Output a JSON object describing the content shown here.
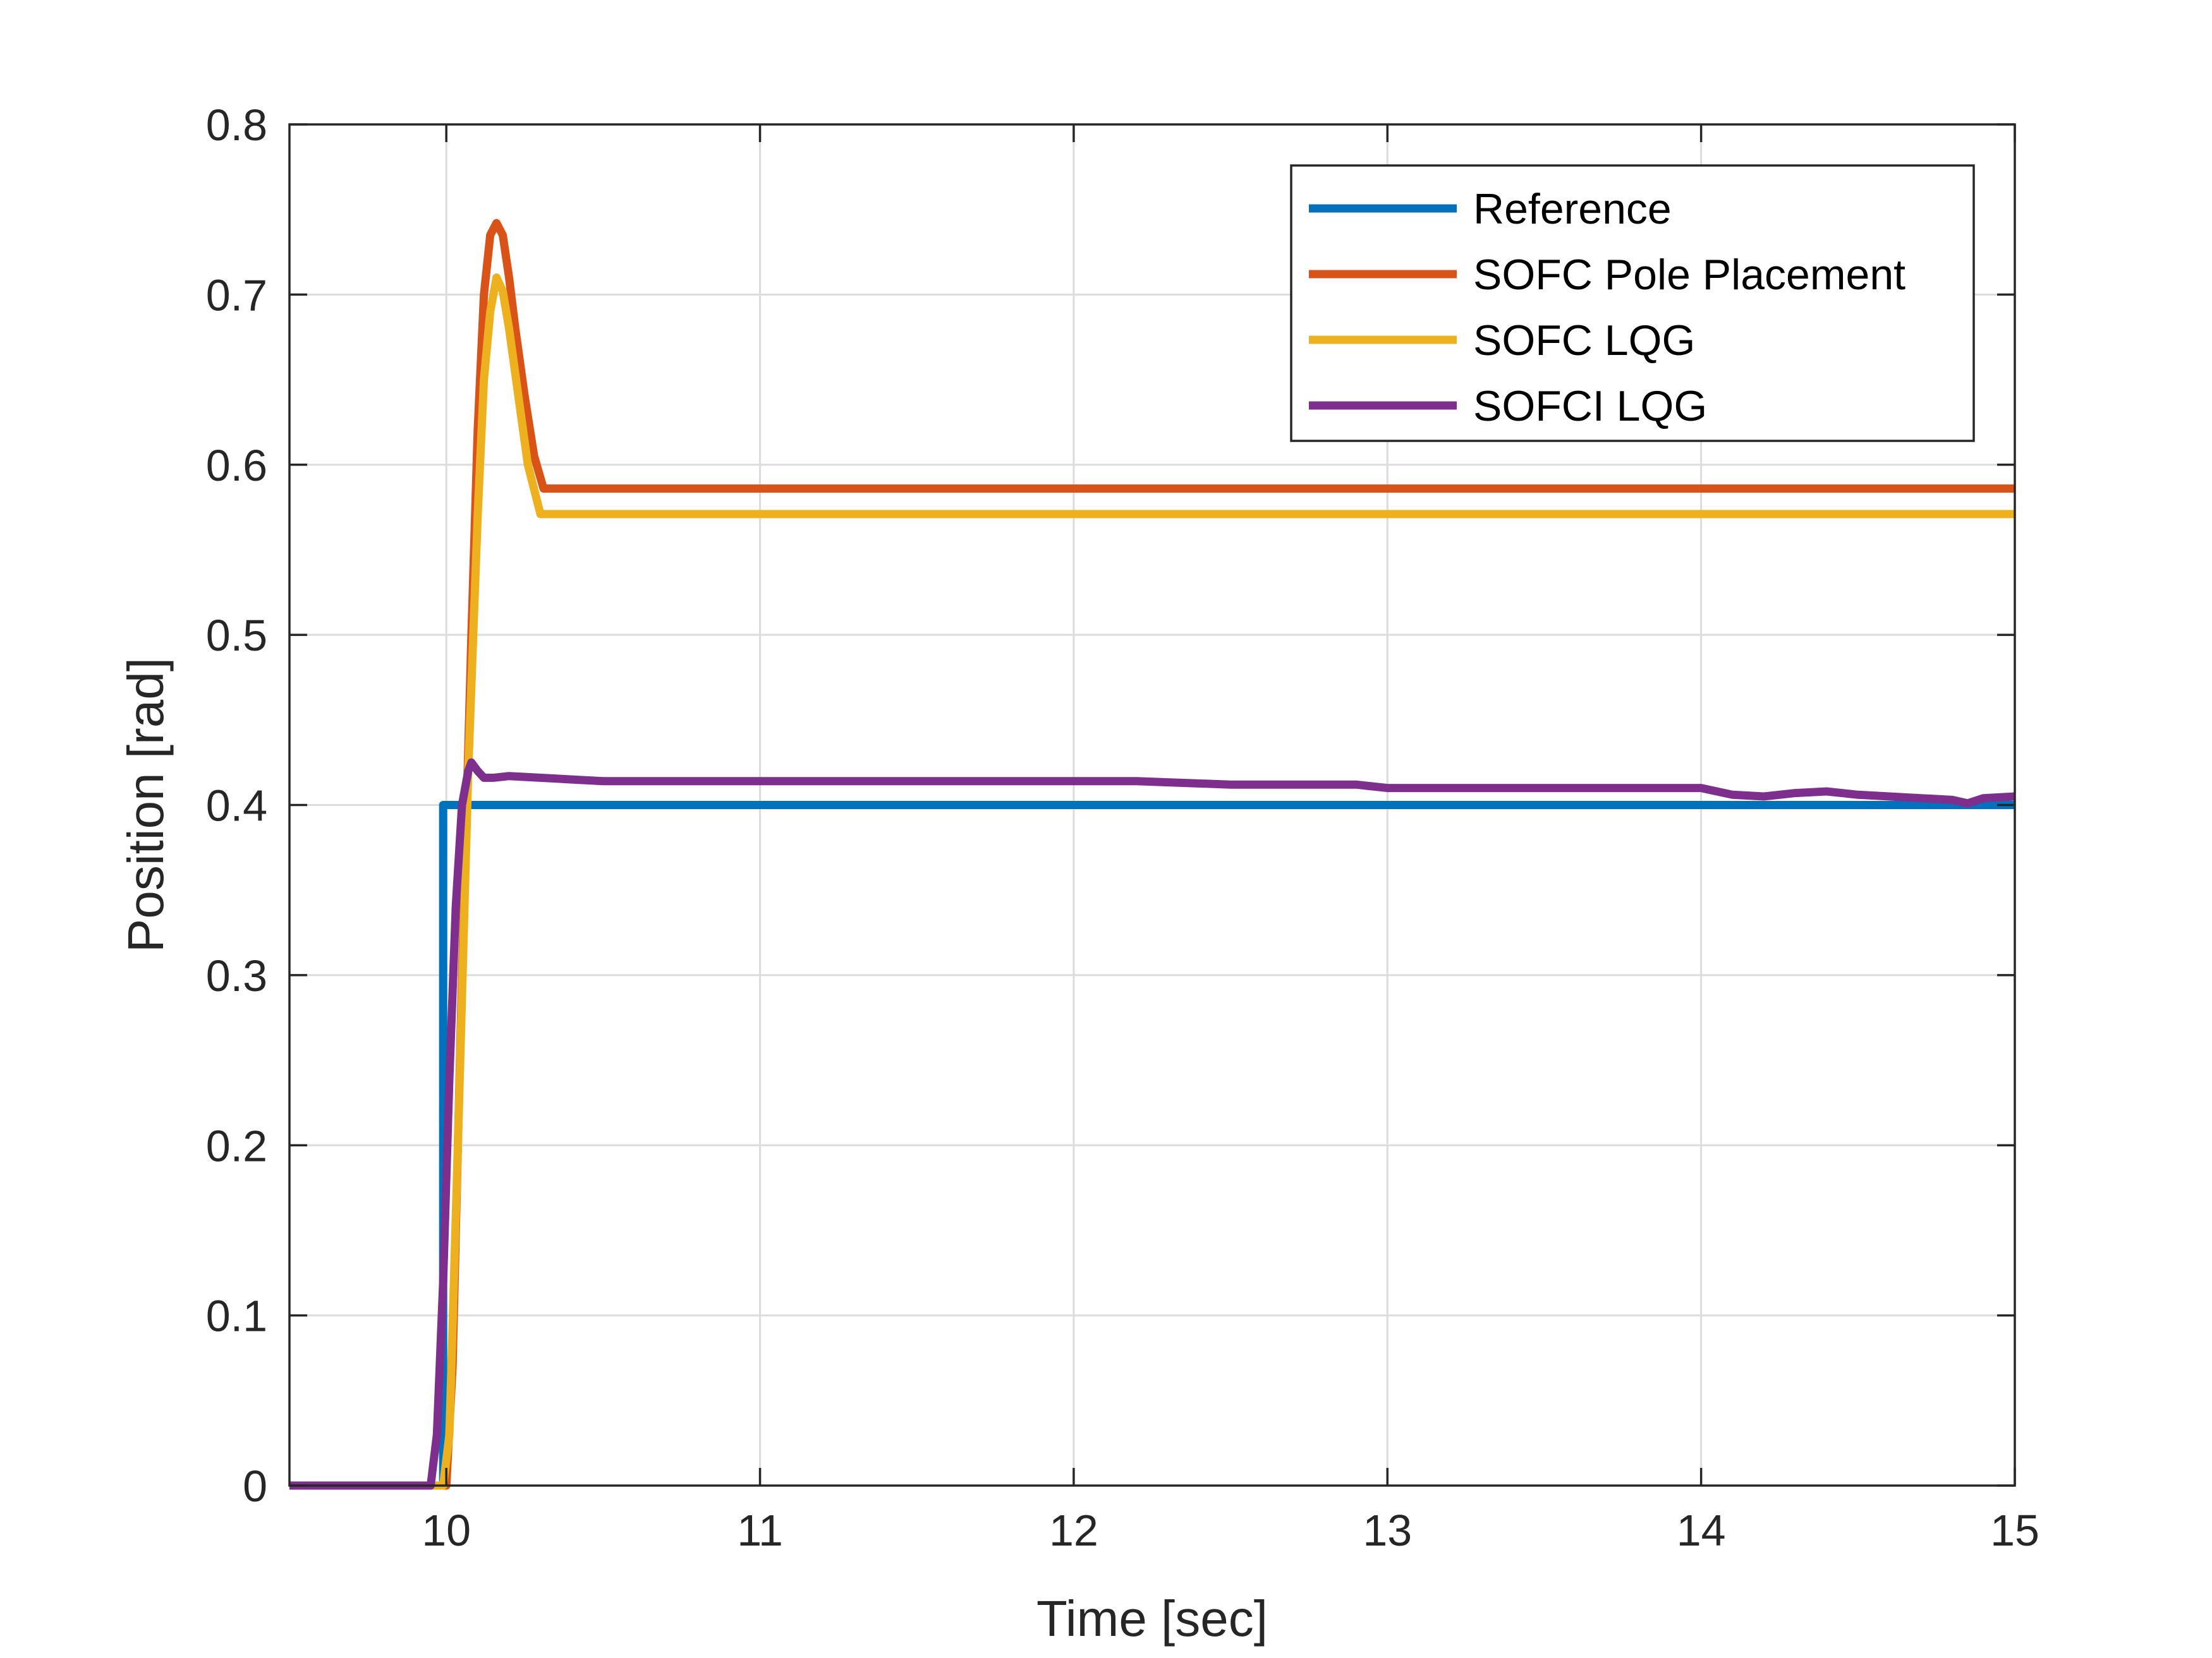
{
  "chart_data": {
    "type": "line",
    "title": "",
    "xlabel": "Time [sec]",
    "ylabel": "Position [rad]",
    "xlim": [
      9.5,
      15
    ],
    "ylim": [
      0,
      0.8
    ],
    "xticks": [
      10,
      11,
      12,
      13,
      14,
      15
    ],
    "yticks": [
      0,
      0.1,
      0.2,
      0.3,
      0.4,
      0.5,
      0.6,
      0.7,
      0.8
    ],
    "xtick_labels": [
      "10",
      "11",
      "12",
      "13",
      "14",
      "15"
    ],
    "ytick_labels": [
      "0",
      "0.1",
      "0.2",
      "0.3",
      "0.4",
      "0.5",
      "0.6",
      "0.7",
      "0.8"
    ],
    "grid": true,
    "legend_position": "top-right",
    "series": [
      {
        "name": "Reference",
        "color": "#0072BD",
        "x": [
          9.5,
          9.99,
          9.99,
          15
        ],
        "y": [
          0,
          0,
          0.4,
          0.4
        ]
      },
      {
        "name": "SOFC Pole Placement",
        "color": "#D95319",
        "x": [
          9.5,
          10.0,
          10.02,
          10.05,
          10.08,
          10.1,
          10.12,
          10.14,
          10.16,
          10.18,
          10.2,
          10.22,
          10.25,
          10.28,
          10.31,
          11,
          12,
          13,
          14,
          15
        ],
        "y": [
          0,
          0,
          0.07,
          0.3,
          0.5,
          0.62,
          0.7,
          0.735,
          0.742,
          0.735,
          0.71,
          0.68,
          0.64,
          0.605,
          0.586,
          0.586,
          0.586,
          0.586,
          0.586,
          0.586
        ]
      },
      {
        "name": "SOFC LQG",
        "color": "#EDB120",
        "x": [
          9.5,
          9.99,
          10.01,
          10.04,
          10.07,
          10.1,
          10.12,
          10.14,
          10.16,
          10.18,
          10.2,
          10.23,
          10.26,
          10.3,
          11,
          12,
          13,
          14,
          15
        ],
        "y": [
          0,
          0,
          0.03,
          0.22,
          0.42,
          0.57,
          0.65,
          0.69,
          0.71,
          0.702,
          0.68,
          0.64,
          0.6,
          0.571,
          0.571,
          0.571,
          0.571,
          0.571,
          0.571
        ]
      },
      {
        "name": "SOFCI LQG",
        "color": "#7E2F8E",
        "x": [
          9.5,
          9.95,
          9.97,
          9.99,
          10.01,
          10.03,
          10.05,
          10.07,
          10.08,
          10.1,
          10.12,
          10.15,
          10.2,
          10.3,
          10.4,
          10.5,
          11,
          11.5,
          12,
          12.2,
          12.5,
          12.9,
          13.0,
          13.5,
          14.0,
          14.1,
          14.2,
          14.3,
          14.4,
          14.5,
          14.6,
          14.7,
          14.8,
          14.85,
          14.9,
          15
        ],
        "y": [
          0,
          0,
          0.03,
          0.12,
          0.24,
          0.34,
          0.4,
          0.42,
          0.425,
          0.42,
          0.416,
          0.416,
          0.417,
          0.416,
          0.415,
          0.414,
          0.414,
          0.414,
          0.414,
          0.414,
          0.412,
          0.412,
          0.41,
          0.41,
          0.41,
          0.406,
          0.405,
          0.407,
          0.408,
          0.406,
          0.405,
          0.404,
          0.403,
          0.401,
          0.404,
          0.405
        ]
      }
    ]
  }
}
